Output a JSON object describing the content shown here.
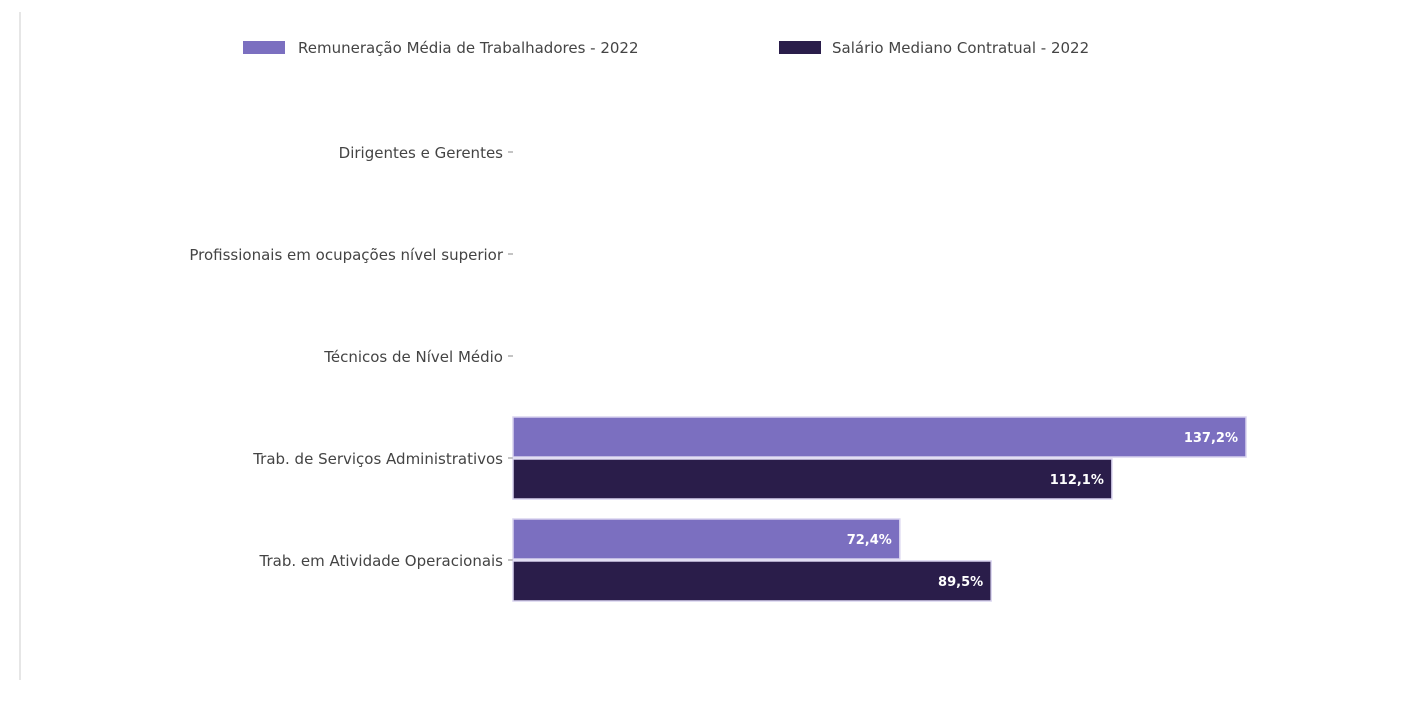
{
  "chart_data": {
    "type": "bar",
    "orientation": "horizontal",
    "categories": [
      "Dirigentes e Gerentes",
      "Profissionais em ocupações nível superior",
      "Técnicos de Nível Médio",
      "Trab. de Serviços Administrativos",
      "Trab. em Atividade Operacionais"
    ],
    "series": [
      {
        "name": "Remuneração Média de Trabalhadores - 2022",
        "color": "#7b6fc0",
        "values": [
          null,
          null,
          null,
          137.2,
          72.4
        ],
        "labels": [
          "",
          "",
          "",
          "137,2%",
          "72,4%"
        ]
      },
      {
        "name": "Salário Mediano Contratual - 2022",
        "color": "#2a1d4a",
        "values": [
          null,
          null,
          null,
          112.1,
          89.5
        ],
        "labels": [
          "",
          "",
          "",
          "112,1%",
          "89,5%"
        ]
      }
    ],
    "xlim": [
      0,
      150
    ],
    "grid": false,
    "legend_position": "top"
  }
}
